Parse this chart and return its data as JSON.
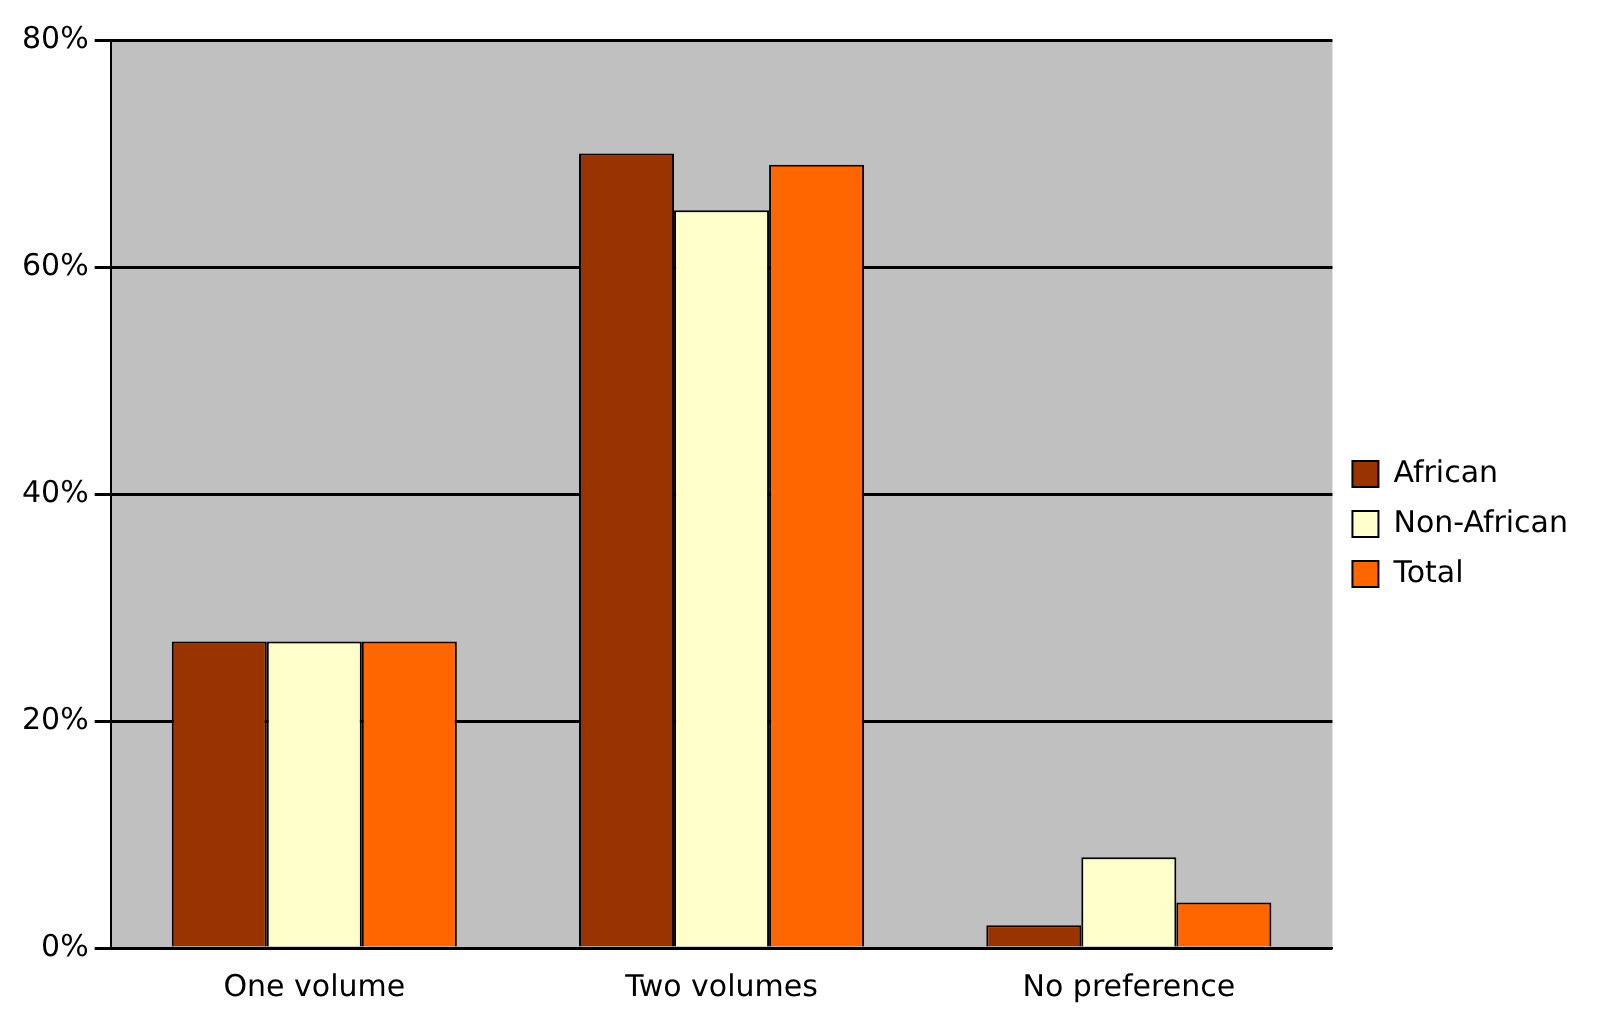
{
  "chart_data": {
    "type": "bar",
    "categories": [
      "One volume",
      "Two volumes",
      "No preference"
    ],
    "series": [
      {
        "name": "African",
        "color": "#993300",
        "values": [
          27,
          70,
          2
        ]
      },
      {
        "name": "Non-African",
        "color": "#ffffcc",
        "values": [
          27,
          65,
          8
        ]
      },
      {
        "name": "Total",
        "color": "#ff6600",
        "values": [
          27,
          69,
          4
        ]
      }
    ],
    "ylim": [
      0,
      80
    ],
    "yticks": [
      {
        "value": 0,
        "label": "0%"
      },
      {
        "value": 20,
        "label": "20%"
      },
      {
        "value": 40,
        "label": "40%"
      },
      {
        "value": 60,
        "label": "60%"
      },
      {
        "value": 80,
        "label": "80%"
      }
    ],
    "grid": "y",
    "legend": "right"
  }
}
